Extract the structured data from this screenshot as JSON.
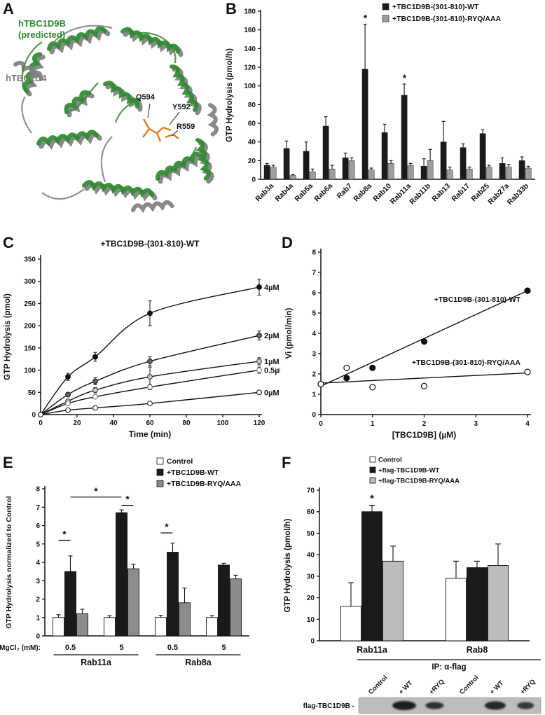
{
  "figure": {
    "panels": {
      "A": {
        "label": "A",
        "protein_predicted_name": "hTBC1D9B",
        "protein_predicted_qualifier": "(predicted)",
        "protein_template_name": "hTBC1D4",
        "residues": [
          "Q594",
          "Y592",
          "R559"
        ],
        "colors": {
          "predicted": "#2e8b2e",
          "template": "#7d807f",
          "sticks": "#d97e1c"
        }
      },
      "B": {
        "label": "B"
      },
      "C": {
        "label": "C"
      },
      "D": {
        "label": "D"
      },
      "E": {
        "label": "E"
      },
      "F": {
        "label": "F"
      }
    }
  },
  "chart_data": [
    {
      "panel": "B",
      "type": "bar",
      "ylabel": "GTP Hydrolysis (pmol/h)",
      "ylim": [
        0,
        180
      ],
      "ytick": 20,
      "categories": [
        "Rab3a",
        "Rab4a",
        "Rab5a",
        "Rab6a",
        "Rab7",
        "Rab8a",
        "Rab10",
        "Rab11a",
        "Rab11b",
        "Rab13",
        "Rab17",
        "Rab25",
        "Rab27a",
        "Rab33b"
      ],
      "series": [
        {
          "name": "+TBC1D9B-(301-810)-WT",
          "color": "#1a1a1a",
          "values": [
            15,
            33,
            30,
            57,
            23,
            118,
            50,
            90,
            14,
            40,
            34,
            49,
            17,
            20
          ],
          "errors": [
            2,
            8,
            10,
            10,
            5,
            48,
            9,
            12,
            8,
            22,
            4,
            4,
            6,
            4
          ]
        },
        {
          "name": "+TBC1D9B-(301-810)-RYQ/AAA",
          "color": "#9e9e9e",
          "values": [
            13,
            4,
            8,
            11,
            20,
            10,
            17,
            15,
            20,
            10,
            11,
            13,
            13,
            12
          ],
          "errors": [
            2,
            1,
            3,
            4,
            3,
            2,
            3,
            2,
            12,
            3,
            2,
            2,
            3,
            2
          ]
        }
      ],
      "asterisks": [
        {
          "series": 0,
          "index": 5
        },
        {
          "series": 0,
          "index": 7
        }
      ]
    },
    {
      "panel": "C",
      "type": "line",
      "title": "+TBC1D9B-(301-810)-WT",
      "xlabel": "Time (min)",
      "ylabel": "GTP Hydrolysis (pmol)",
      "xlim": [
        0,
        120
      ],
      "ylim": [
        0,
        350
      ],
      "x": [
        0,
        15,
        30,
        60,
        120
      ],
      "series": [
        {
          "name": "4µM",
          "marker_fill": "#111111",
          "marker_stroke": "#111111",
          "values": [
            0,
            85,
            130,
            228,
            287
          ],
          "errors": [
            0,
            8,
            10,
            28,
            18
          ]
        },
        {
          "name": "2µM",
          "marker_fill": "#666666",
          "marker_stroke": "#222222",
          "values": [
            0,
            45,
            75,
            120,
            178
          ],
          "errors": [
            0,
            5,
            8,
            10,
            10
          ]
        },
        {
          "name": "1µM",
          "marker_fill": "#c8c8c8",
          "marker_stroke": "#444444",
          "values": [
            0,
            30,
            55,
            85,
            120
          ],
          "errors": [
            0,
            4,
            6,
            22,
            8
          ]
        },
        {
          "name": "0.5µM",
          "marker_fill": "#ffffff",
          "marker_stroke": "#777777",
          "values": [
            0,
            25,
            40,
            62,
            100
          ],
          "errors": [
            0,
            3,
            4,
            6,
            7
          ]
        },
        {
          "name": "0µM",
          "marker_fill": "#ffffff",
          "marker_stroke": "#222222",
          "values": [
            0,
            10,
            15,
            25,
            50
          ],
          "errors": [
            0,
            2,
            2,
            3,
            4
          ]
        }
      ]
    },
    {
      "panel": "D",
      "type": "scatter",
      "xlabel": "[TBC1D9B] (µM)",
      "ylabel": "Vi (pmol/min)",
      "xlim": [
        0,
        4
      ],
      "ylim": [
        0,
        8
      ],
      "x": [
        0,
        0.5,
        1,
        2,
        4
      ],
      "series": [
        {
          "name": "+TBC1D9B-(301-810)-WT",
          "marker": "filled",
          "values": [
            1.5,
            1.8,
            2.3,
            3.6,
            6.1
          ],
          "fit": [
            1.4,
            6.1
          ],
          "label_y": 5.55
        },
        {
          "name": "+TBC1D9B-(301-810)-RYQ/AAA",
          "marker": "open",
          "values": [
            1.5,
            2.3,
            1.35,
            1.4,
            2.1
          ],
          "fit": [
            1.55,
            2.05
          ],
          "label_y": 2.45
        }
      ]
    },
    {
      "panel": "E",
      "type": "grouped-bar",
      "ylabel": "GTP Hydrolysis normalized to Control",
      "ylim": [
        0,
        8
      ],
      "ytick": 1,
      "group_axis_label": "MgCl₂ (mM):",
      "groups": [
        "0.5",
        "5",
        "0.5",
        "5"
      ],
      "super_groups": [
        {
          "label": "Rab11a",
          "span": [
            0,
            1
          ]
        },
        {
          "label": "Rab8a",
          "span": [
            2,
            3
          ]
        }
      ],
      "series": [
        {
          "name": "Control",
          "color": "#ffffff",
          "values": [
            1,
            1,
            1,
            1
          ],
          "errors": [
            0.15,
            0.1,
            0.12,
            0.1
          ]
        },
        {
          "name": "+TBC1D9B-WT",
          "color": "#1a1a1a",
          "values": [
            3.5,
            6.7,
            4.55,
            3.85
          ],
          "errors": [
            0.85,
            0.15,
            0.5,
            0.1
          ]
        },
        {
          "name": "+TBC1D9B-RYQ/AAA",
          "color": "#8c8c8c",
          "values": [
            1.2,
            3.65,
            1.8,
            3.1
          ],
          "errors": [
            0.25,
            0.25,
            0.8,
            0.2
          ]
        }
      ],
      "sig": [
        {
          "from": [
            0,
            0
          ],
          "to": [
            0,
            1
          ],
          "y": 5.2
        },
        {
          "from": [
            0,
            1
          ],
          "to": [
            1,
            1
          ],
          "y": 7.55
        },
        {
          "from": [
            1,
            1
          ],
          "to": [
            1,
            2
          ],
          "y": 7.1
        },
        {
          "from": [
            2,
            0
          ],
          "to": [
            2,
            1
          ],
          "y": 5.6
        }
      ]
    },
    {
      "panel": "F",
      "type": "grouped-bar",
      "ylabel": "GTP Hydrolysis (pmol/h)",
      "ylim": [
        0,
        70
      ],
      "ytick": 10,
      "groups": [
        "Rab11a",
        "Rab8"
      ],
      "series": [
        {
          "name": "Control",
          "color": "#ffffff",
          "values": [
            16,
            29
          ],
          "errors": [
            11,
            8
          ]
        },
        {
          "name": "+flag-TBC1D9B-WT",
          "color": "#1a1a1a",
          "values": [
            60,
            34
          ],
          "errors": [
            3,
            3
          ]
        },
        {
          "name": "+flag-TBC1D9B-RYQ/AAA",
          "color": "#bcbcbc",
          "values": [
            37,
            35
          ],
          "errors": [
            7,
            10
          ]
        }
      ],
      "asterisks": [
        {
          "group": 0,
          "series": 1
        }
      ],
      "blot": {
        "title": "IP: α-flag",
        "row_label": "flag-TBC1D9B -",
        "lanes": [
          "Control",
          "+ WT",
          "+RYQ",
          "Control",
          "+ WT",
          "+RYQ"
        ]
      }
    }
  ]
}
